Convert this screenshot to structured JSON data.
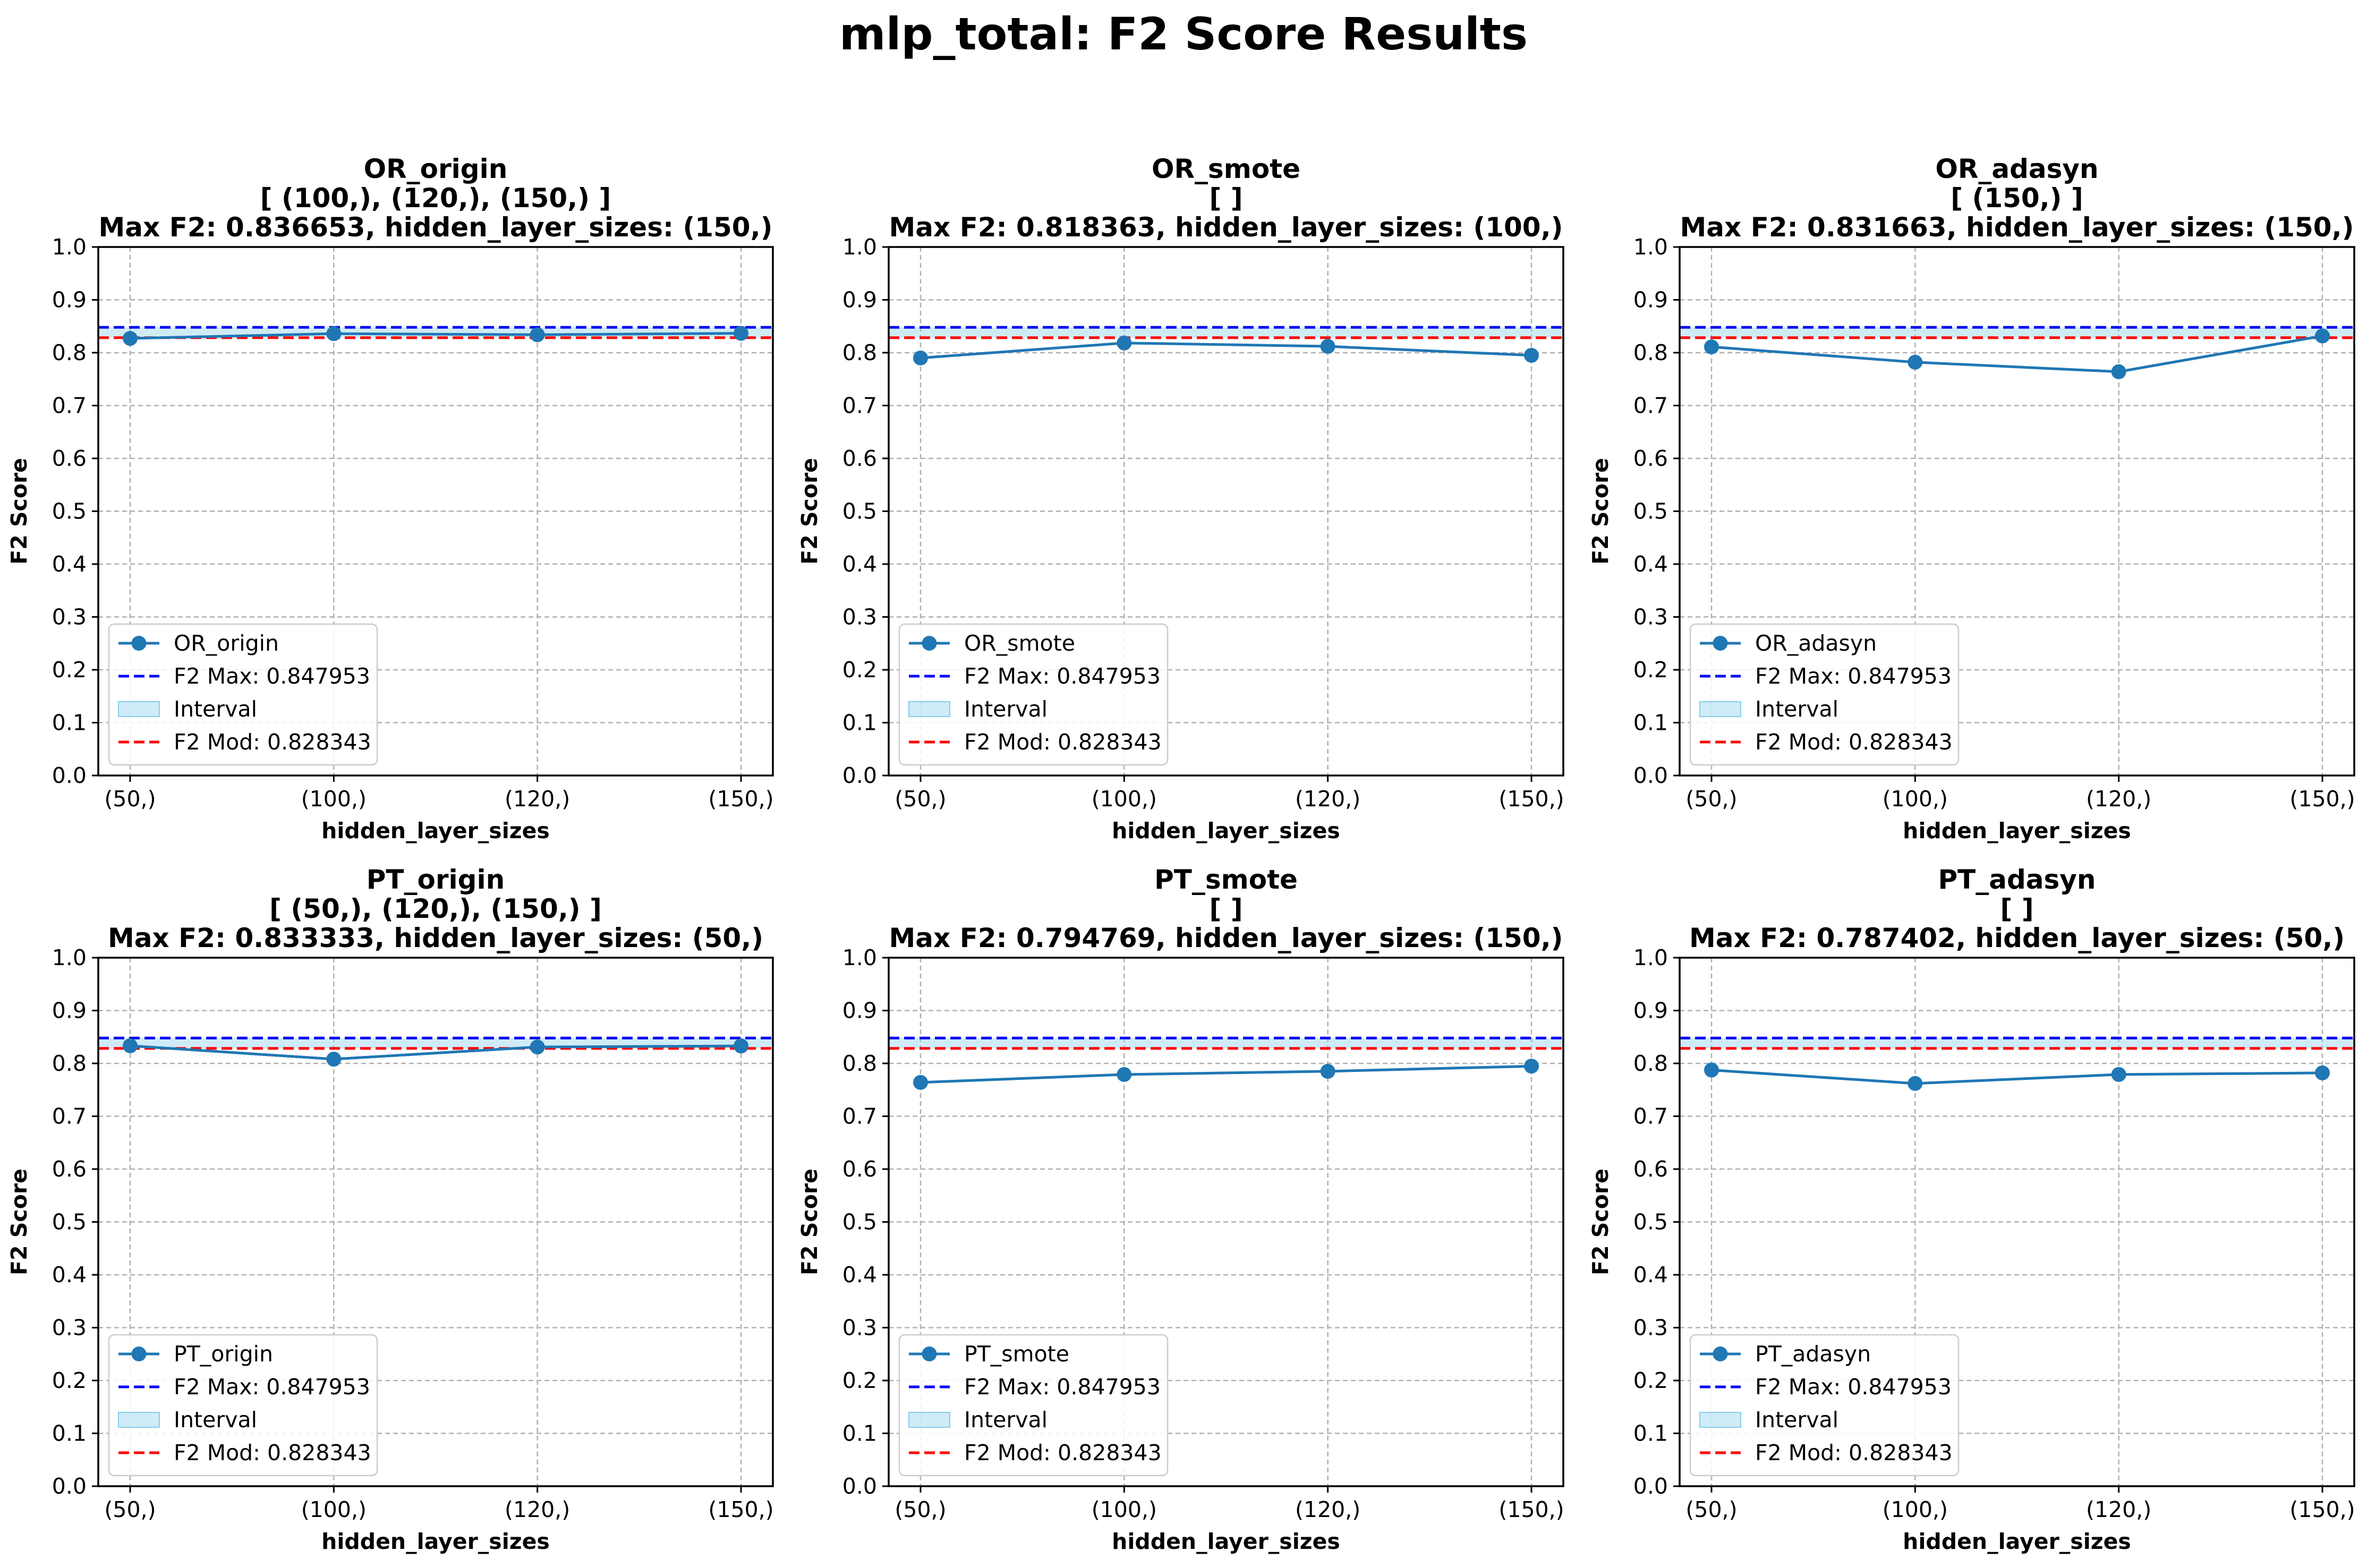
{
  "title": "mlp_total: F2 Score Results",
  "colors": {
    "series": "#1f77b4",
    "f2_max": "#0000ff",
    "f2_mod": "#ff0000",
    "interval_fill": "#87ceeb",
    "grid": "#b0b0b0"
  },
  "chart_data": [
    {
      "type": "line",
      "title_lines": [
        "OR_origin",
        "[ (100,), (120,), (150,) ]",
        "Max F2: 0.836653, hidden_layer_sizes: (150,)"
      ],
      "categories": [
        "(50,)",
        "(100,)",
        "(120,)",
        "(150,)"
      ],
      "series": [
        {
          "name": "OR_origin",
          "values": [
            0.827,
            0.836,
            0.834,
            0.836653
          ]
        }
      ],
      "f2_max": 0.847953,
      "f2_mod": 0.828343,
      "legend": [
        "OR_origin",
        "F2 Max: 0.847953",
        "Interval",
        "F2 Mod: 0.828343"
      ],
      "xlabel": "hidden_layer_sizes",
      "ylabel": "F2 Score",
      "ylim": [
        0.0,
        1.0
      ],
      "yticks": [
        "0.0",
        "0.1",
        "0.2",
        "0.3",
        "0.4",
        "0.5",
        "0.6",
        "0.7",
        "0.8",
        "0.9",
        "1.0"
      ],
      "grid": true,
      "legend_position": "lower-left"
    },
    {
      "type": "line",
      "title_lines": [
        "OR_smote",
        "[  ]",
        "Max F2: 0.818363, hidden_layer_sizes: (100,)"
      ],
      "categories": [
        "(50,)",
        "(100,)",
        "(120,)",
        "(150,)"
      ],
      "series": [
        {
          "name": "OR_smote",
          "values": [
            0.79,
            0.818363,
            0.812,
            0.795
          ]
        }
      ],
      "f2_max": 0.847953,
      "f2_mod": 0.828343,
      "legend": [
        "OR_smote",
        "F2 Max: 0.847953",
        "Interval",
        "F2 Mod: 0.828343"
      ],
      "xlabel": "hidden_layer_sizes",
      "ylabel": "F2 Score",
      "ylim": [
        0.0,
        1.0
      ],
      "yticks": [
        "0.0",
        "0.1",
        "0.2",
        "0.3",
        "0.4",
        "0.5",
        "0.6",
        "0.7",
        "0.8",
        "0.9",
        "1.0"
      ],
      "grid": true,
      "legend_position": "lower-left"
    },
    {
      "type": "line",
      "title_lines": [
        "OR_adasyn",
        "[ (150,) ]",
        "Max F2: 0.831663, hidden_layer_sizes: (150,)"
      ],
      "categories": [
        "(50,)",
        "(100,)",
        "(120,)",
        "(150,)"
      ],
      "series": [
        {
          "name": "OR_adasyn",
          "values": [
            0.811,
            0.782,
            0.764,
            0.831663
          ]
        }
      ],
      "f2_max": 0.847953,
      "f2_mod": 0.828343,
      "legend": [
        "OR_adasyn",
        "F2 Max: 0.847953",
        "Interval",
        "F2 Mod: 0.828343"
      ],
      "xlabel": "hidden_layer_sizes",
      "ylabel": "F2 Score",
      "ylim": [
        0.0,
        1.0
      ],
      "yticks": [
        "0.0",
        "0.1",
        "0.2",
        "0.3",
        "0.4",
        "0.5",
        "0.6",
        "0.7",
        "0.8",
        "0.9",
        "1.0"
      ],
      "grid": true,
      "legend_position": "lower-left"
    },
    {
      "type": "line",
      "title_lines": [
        "PT_origin",
        "[ (50,), (120,), (150,) ]",
        "Max F2: 0.833333, hidden_layer_sizes: (50,)"
      ],
      "categories": [
        "(50,)",
        "(100,)",
        "(120,)",
        "(150,)"
      ],
      "series": [
        {
          "name": "PT_origin",
          "values": [
            0.833333,
            0.808,
            0.831,
            0.833
          ]
        }
      ],
      "f2_max": 0.847953,
      "f2_mod": 0.828343,
      "legend": [
        "PT_origin",
        "F2 Max: 0.847953",
        "Interval",
        "F2 Mod: 0.828343"
      ],
      "xlabel": "hidden_layer_sizes",
      "ylabel": "F2 Score",
      "ylim": [
        0.0,
        1.0
      ],
      "yticks": [
        "0.0",
        "0.1",
        "0.2",
        "0.3",
        "0.4",
        "0.5",
        "0.6",
        "0.7",
        "0.8",
        "0.9",
        "1.0"
      ],
      "grid": true,
      "legend_position": "lower-left"
    },
    {
      "type": "line",
      "title_lines": [
        "PT_smote",
        "[  ]",
        "Max F2: 0.794769, hidden_layer_sizes: (150,)"
      ],
      "categories": [
        "(50,)",
        "(100,)",
        "(120,)",
        "(150,)"
      ],
      "series": [
        {
          "name": "PT_smote",
          "values": [
            0.764,
            0.779,
            0.785,
            0.794769
          ]
        }
      ],
      "f2_max": 0.847953,
      "f2_mod": 0.828343,
      "legend": [
        "PT_smote",
        "F2 Max: 0.847953",
        "Interval",
        "F2 Mod: 0.828343"
      ],
      "xlabel": "hidden_layer_sizes",
      "ylabel": "F2 Score",
      "ylim": [
        0.0,
        1.0
      ],
      "yticks": [
        "0.0",
        "0.1",
        "0.2",
        "0.3",
        "0.4",
        "0.5",
        "0.6",
        "0.7",
        "0.8",
        "0.9",
        "1.0"
      ],
      "grid": true,
      "legend_position": "lower-left"
    },
    {
      "type": "line",
      "title_lines": [
        "PT_adasyn",
        "[  ]",
        "Max F2: 0.787402, hidden_layer_sizes: (50,)"
      ],
      "categories": [
        "(50,)",
        "(100,)",
        "(120,)",
        "(150,)"
      ],
      "series": [
        {
          "name": "PT_adasyn",
          "values": [
            0.787402,
            0.762,
            0.779,
            0.782
          ]
        }
      ],
      "f2_max": 0.847953,
      "f2_mod": 0.828343,
      "legend": [
        "PT_adasyn",
        "F2 Max: 0.847953",
        "Interval",
        "F2 Mod: 0.828343"
      ],
      "xlabel": "hidden_layer_sizes",
      "ylabel": "F2 Score",
      "ylim": [
        0.0,
        1.0
      ],
      "yticks": [
        "0.0",
        "0.1",
        "0.2",
        "0.3",
        "0.4",
        "0.5",
        "0.6",
        "0.7",
        "0.8",
        "0.9",
        "1.0"
      ],
      "grid": true,
      "legend_position": "lower-left"
    }
  ]
}
